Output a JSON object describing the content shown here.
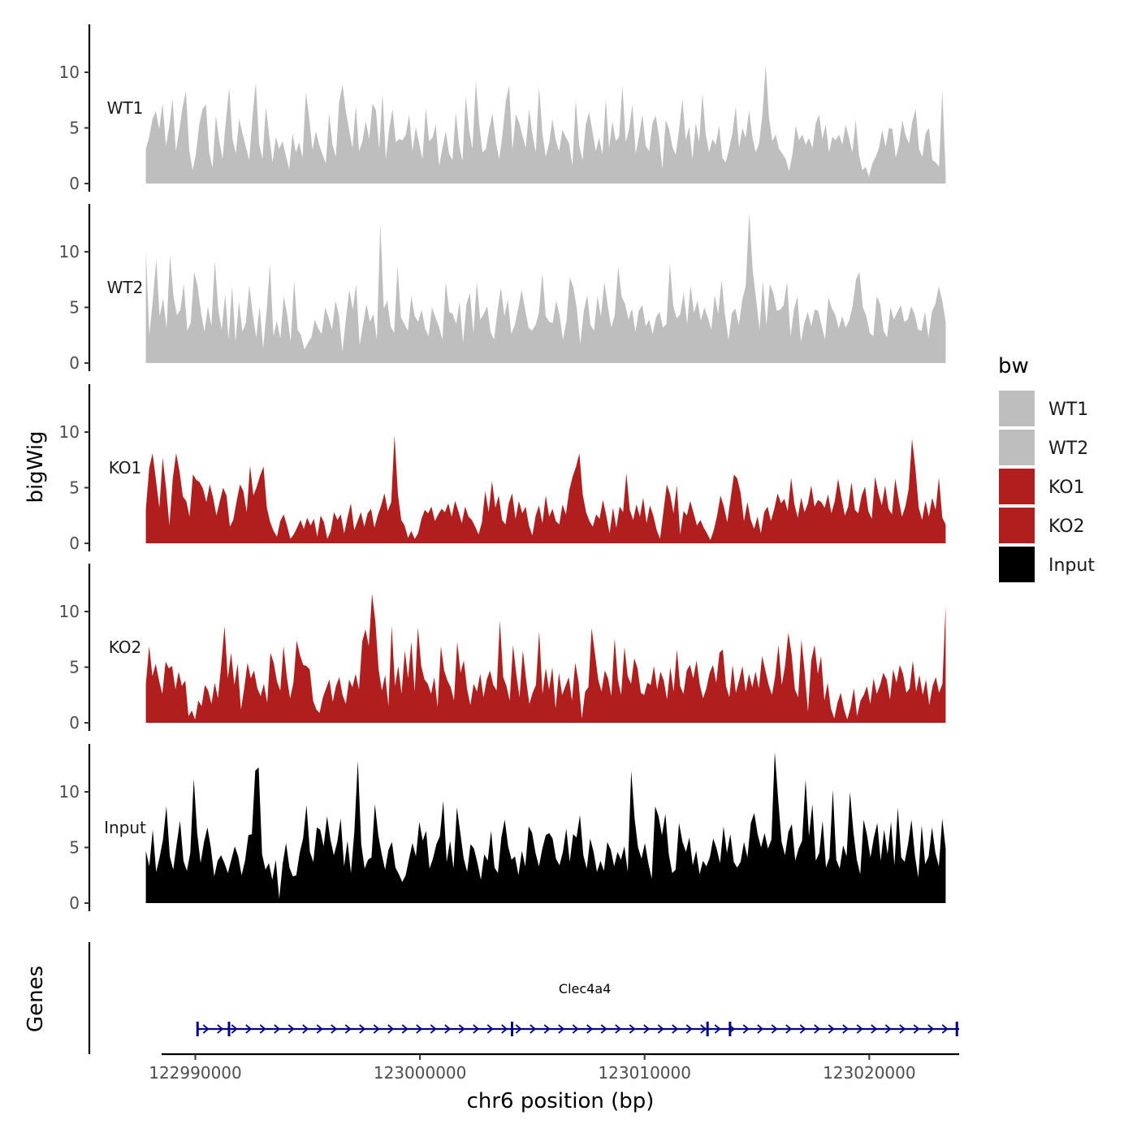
{
  "chart_data": {
    "type": "area",
    "ylabel": "bigWig",
    "xlabel": "chr6 position (bp)",
    "xlim": [
      122988500,
      123024000
    ],
    "ylim": [
      0,
      14
    ],
    "y_ticks": [
      0,
      5,
      10
    ],
    "y_tick_labels": [
      "0",
      "5",
      "10"
    ],
    "x_ticks": [
      122990000,
      123000000,
      123010000,
      123020000
    ],
    "x_tick_labels": [
      "122990000",
      "123000000",
      "123010000",
      "123020000"
    ],
    "signal_start": 122987800,
    "signal_end": 123023400,
    "series": [
      {
        "name": "WT1",
        "color": "#bebebe",
        "values": [
          3.1,
          4.2,
          5.8,
          6.5,
          4.9,
          7.2,
          3.4,
          5.1,
          7.6,
          2.9,
          4.8,
          6.9,
          8.3,
          3.0,
          1.2,
          2.6,
          5.3,
          6.7,
          7.1,
          2.8,
          1.4,
          6.1,
          3.9,
          2.2,
          5.6,
          8.6,
          4.0,
          2.7,
          5.8,
          4.5,
          3.3,
          2.1,
          6.0,
          9.1,
          3.6,
          2.2,
          6.9,
          4.3,
          1.9,
          4.2,
          3.1,
          3.8,
          2.5,
          1.3,
          4.5,
          2.8,
          3.7,
          2.3,
          8.2,
          5.9,
          3.0,
          4.7,
          3.5,
          2.6,
          1.8,
          6.3,
          3.5,
          2.4,
          7.3,
          8.9,
          6.5,
          4.8,
          3.2,
          7.0,
          2.9,
          3.8,
          5.6,
          4.0,
          7.2,
          6.6,
          3.1,
          8.1,
          2.2,
          4.9,
          6.7,
          3.7,
          4.0,
          3.9,
          4.4,
          6.2,
          2.9,
          5.1,
          3.6,
          2.2,
          6.8,
          3.8,
          4.1,
          5.3,
          1.6,
          3.2,
          4.7,
          2.7,
          2.1,
          6.4,
          3.5,
          2.0,
          7.9,
          4.8,
          3.1,
          9.2,
          5.4,
          2.8,
          3.1,
          4.9,
          6.3,
          3.8,
          2.2,
          4.4,
          7.4,
          8.8,
          3.0,
          6.2,
          5.5,
          4.3,
          3.2,
          6.7,
          4.4,
          2.8,
          8.7,
          4.5,
          2.4,
          3.6,
          5.8,
          3.9,
          2.9,
          4.8,
          4.2,
          3.6,
          1.6,
          7.5,
          3.5,
          2.1,
          5.3,
          6.4,
          4.7,
          2.9,
          4.1,
          2.6,
          7.6,
          3.2,
          5.6,
          3.8,
          4.2,
          8.8,
          3.7,
          4.9,
          7.1,
          2.7,
          4.3,
          6.2,
          3.4,
          2.9,
          5.4,
          6.1,
          4.2,
          1.3,
          5.7,
          4.9,
          3.3,
          2.6,
          4.8,
          7.6,
          3.9,
          5.1,
          2.2,
          5.5,
          3.7,
          8.1,
          4.4,
          2.8,
          4.0,
          3.5,
          5.2,
          2.3,
          1.9,
          3.1,
          4.5,
          6.9,
          3.2,
          5.0,
          4.1,
          6.6,
          4.2,
          2.8,
          3.6,
          6.1,
          10.6,
          5.9,
          3.8,
          4.4,
          3.1,
          2.7,
          2.2,
          1.1,
          2.6,
          5.2,
          3.9,
          4.4,
          3.5,
          4.1,
          3.2,
          5.4,
          6.2,
          4.0,
          5.3,
          2.8,
          4.2,
          3.9,
          4.4,
          3.5,
          5.3,
          4.1,
          2.8,
          5.7,
          2.6,
          1.2,
          1.5,
          0.6,
          1.8,
          2.4,
          3.2,
          4.8,
          3.3,
          5.0,
          4.9,
          2.3,
          3.5,
          5.7,
          4.3,
          3.6,
          5.6,
          6.7,
          3.1,
          2.4,
          4.5,
          5.0,
          2.1,
          1.9,
          1.5,
          8.4,
          0.9
        ]
      },
      {
        "name": "WT2",
        "color": "#bebebe",
        "values": [
          10.1,
          2.5,
          5.6,
          9.3,
          4.2,
          5.8,
          3.1,
          9.7,
          6.0,
          4.3,
          4.8,
          7.1,
          2.9,
          3.6,
          8.2,
          6.9,
          4.5,
          2.8,
          5.1,
          3.3,
          9.2,
          4.8,
          3.0,
          6.2,
          2.1,
          6.9,
          1.9,
          5.5,
          2.8,
          3.6,
          7.0,
          4.4,
          2.3,
          5.1,
          1.3,
          4.6,
          8.9,
          2.4,
          3.8,
          2.2,
          6.0,
          4.3,
          1.9,
          7.4,
          3.0,
          2.5,
          1.2,
          1.8,
          2.3,
          3.9,
          3.1,
          2.6,
          5.0,
          4.1,
          3.0,
          5.6,
          4.3,
          1.0,
          3.9,
          6.6,
          4.8,
          7.1,
          1.6,
          3.5,
          5.3,
          3.7,
          4.4,
          2.1,
          12.6,
          4.9,
          5.6,
          3.3,
          2.7,
          8.7,
          4.1,
          3.5,
          2.9,
          6.0,
          4.2,
          3.7,
          4.8,
          3.1,
          2.4,
          5.0,
          4.1,
          3.3,
          2.1,
          7.3,
          4.6,
          4.4,
          3.5,
          5.5,
          1.8,
          5.3,
          6.3,
          2.7,
          7.3,
          3.9,
          4.4,
          5.1,
          2.8,
          2.1,
          4.7,
          6.8,
          4.2,
          5.7,
          2.6,
          3.4,
          4.9,
          6.6,
          4.8,
          3.2,
          2.9,
          3.4,
          4.5,
          8.1,
          4.2,
          3.7,
          3.6,
          5.6,
          4.3,
          2.1,
          3.8,
          7.7,
          6.8,
          4.9,
          1.7,
          4.6,
          6.1,
          3.4,
          2.9,
          6.0,
          4.2,
          7.3,
          5.1,
          3.2,
          4.3,
          8.7,
          6.0,
          5.3,
          3.9,
          4.9,
          2.8,
          4.7,
          5.2,
          3.3,
          3.9,
          2.6,
          4.1,
          4.6,
          3.2,
          3.5,
          8.9,
          5.1,
          4.0,
          4.4,
          6.3,
          3.5,
          7.0,
          4.5,
          5.6,
          3.8,
          5.0,
          4.1,
          3.0,
          6.1,
          4.4,
          7.5,
          4.3,
          2.1,
          4.5,
          4.9,
          3.4,
          5.7,
          6.9,
          13.5,
          8.4,
          5.8,
          3.0,
          7.4,
          3.4,
          7.1,
          6.3,
          4.7,
          4.8,
          5.2,
          7.3,
          2.4,
          4.8,
          6.0,
          1.9,
          3.6,
          4.6,
          3.3,
          4.8,
          4.7,
          3.4,
          2.1,
          5.9,
          4.9,
          4.3,
          3.1,
          4.2,
          3.2,
          3.8,
          5.1,
          7.5,
          8.2,
          5.0,
          4.2,
          2.7,
          2.4,
          6.0,
          5.3,
          2.9,
          2.3,
          5.0,
          3.9,
          4.6,
          5.2,
          3.7,
          3.9,
          5.1,
          4.4,
          3.0,
          2.9,
          4.6,
          2.3,
          4.6,
          5.3,
          6.9,
          5.6,
          3.7
        ]
      },
      {
        "name": "KO1",
        "color": "#b11e1e",
        "values": [
          3.1,
          6.8,
          8.1,
          5.7,
          3.2,
          7.7,
          5.0,
          1.6,
          5.8,
          8.1,
          6.5,
          4.2,
          3.8,
          2.4,
          6.2,
          5.7,
          5.5,
          4.9,
          3.7,
          5.3,
          4.1,
          2.5,
          3.8,
          5.0,
          4.3,
          1.5,
          2.1,
          3.8,
          5.3,
          4.7,
          2.8,
          7.0,
          4.3,
          5.1,
          6.1,
          6.9,
          3.2,
          1.9,
          1.1,
          0.6,
          2.0,
          2.6,
          1.6,
          0.4,
          0.8,
          1.4,
          2.1,
          1.3,
          2.3,
          1.6,
          2.2,
          0.6,
          2.5,
          1.9,
          0.4,
          1.1,
          2.8,
          2.1,
          2.6,
          0.9,
          2.3,
          3.6,
          1.2,
          2.0,
          2.8,
          1.5,
          2.7,
          3.1,
          1.4,
          2.5,
          3.4,
          4.5,
          2.9,
          3.7,
          9.7,
          4.4,
          2.1,
          1.6,
          0.5,
          1.1,
          0.4,
          0.9,
          2.2,
          3.0,
          2.7,
          3.3,
          2.0,
          2.6,
          3.1,
          2.8,
          3.6,
          2.4,
          3.8,
          2.9,
          1.8,
          3.3,
          2.4,
          2.1,
          1.5,
          0.8,
          1.9,
          4.7,
          2.8,
          5.6,
          3.2,
          4.3,
          2.1,
          1.7,
          3.6,
          4.5,
          2.2,
          3.8,
          2.7,
          3.3,
          1.6,
          0.7,
          2.5,
          3.4,
          1.8,
          4.3,
          2.4,
          3.1,
          2.0,
          1.7,
          3.5,
          2.6,
          4.8,
          6.0,
          6.9,
          8.1,
          4.4,
          2.8,
          2.0,
          1.5,
          2.6,
          2.2,
          3.9,
          2.5,
          0.9,
          3.2,
          1.4,
          3.3,
          2.8,
          6.3,
          3.0,
          2.1,
          3.5,
          2.4,
          4.1,
          1.8,
          3.4,
          2.5,
          1.2,
          0.4,
          2.8,
          5.3,
          4.4,
          2.7,
          5.2,
          0.8,
          2.9,
          2.5,
          3.8,
          2.7,
          1.6,
          2.1,
          1.4,
          0.9,
          0.3,
          1.2,
          2.5,
          4.3,
          3.3,
          1.9,
          4.0,
          6.2,
          5.8,
          4.5,
          2.0,
          3.7,
          2.1,
          1.3,
          2.4,
          0.9,
          2.8,
          3.3,
          2.0,
          3.1,
          4.5,
          3.6,
          4.0,
          2.9,
          5.9,
          3.5,
          2.3,
          4.1,
          2.8,
          3.6,
          5.2,
          3.3,
          3.9,
          3.7,
          3.2,
          4.4,
          2.7,
          3.8,
          5.8,
          4.1,
          2.5,
          3.3,
          5.5,
          3.0,
          2.7,
          4.3,
          5.1,
          2.9,
          2.2,
          6.0,
          4.5,
          3.4,
          5.2,
          3.1,
          2.6,
          5.8,
          4.0,
          2.4,
          3.3,
          4.9,
          9.4,
          6.7,
          3.2,
          2.1,
          3.8,
          2.4,
          4.1,
          3.0,
          5.9,
          2.3,
          1.7
        ]
      },
      {
        "name": "KO2",
        "color": "#b11e1e",
        "values": [
          3.5,
          6.9,
          4.2,
          5.3,
          3.8,
          2.6,
          5.5,
          4.9,
          5.1,
          3.0,
          4.6,
          3.3,
          3.8,
          0.6,
          1.1,
          0.3,
          2.0,
          1.5,
          3.4,
          2.9,
          1.7,
          3.6,
          2.2,
          5.3,
          8.7,
          4.0,
          6.3,
          3.4,
          5.3,
          1.2,
          3.1,
          5.4,
          4.0,
          4.7,
          3.1,
          2.4,
          3.5,
          1.8,
          6.3,
          5.4,
          3.7,
          2.9,
          6.9,
          4.1,
          2.2,
          3.6,
          7.4,
          6.1,
          5.2,
          5.1,
          4.8,
          2.0,
          1.2,
          0.9,
          2.3,
          3.1,
          3.9,
          1.9,
          3.3,
          4.1,
          2.5,
          1.7,
          3.9,
          3.2,
          4.4,
          3.0,
          7.3,
          8.4,
          6.9,
          11.6,
          9.1,
          4.8,
          2.9,
          4.3,
          1.5,
          8.7,
          3.3,
          5.1,
          2.6,
          6.5,
          4.0,
          7.3,
          2.8,
          8.6,
          5.1,
          3.9,
          3.5,
          2.6,
          4.1,
          1.4,
          6.9,
          4.7,
          3.8,
          3.2,
          2.0,
          7.3,
          4.5,
          5.6,
          3.0,
          1.6,
          3.5,
          2.8,
          4.4,
          2.3,
          3.9,
          4.7,
          3.4,
          2.9,
          9.2,
          4.1,
          3.3,
          2.0,
          7.0,
          4.4,
          2.3,
          6.5,
          3.9,
          1.7,
          2.7,
          3.4,
          8.2,
          2.6,
          4.9,
          3.0,
          5.0,
          1.3,
          4.5,
          2.5,
          3.3,
          4.1,
          2.0,
          5.4,
          3.7,
          0.4,
          2.8,
          3.2,
          8.5,
          6.2,
          3.9,
          2.8,
          4.7,
          4.0,
          2.4,
          7.6,
          3.9,
          2.5,
          6.8,
          4.2,
          3.5,
          5.8,
          4.9,
          2.7,
          2.5,
          3.6,
          3.4,
          5.1,
          3.0,
          4.6,
          3.8,
          2.1,
          5.0,
          2.8,
          6.6,
          3.3,
          2.6,
          4.7,
          5.2,
          4.0,
          5.6,
          3.4,
          2.2,
          3.1,
          4.5,
          5.2,
          3.6,
          6.3,
          6.6,
          3.3,
          2.3,
          5.2,
          2.7,
          3.8,
          5.1,
          2.8,
          4.4,
          3.2,
          4.6,
          3.1,
          6.0,
          4.7,
          3.4,
          2.5,
          4.2,
          7.0,
          3.4,
          5.1,
          8.1,
          6.2,
          3.0,
          2.3,
          7.5,
          4.5,
          1.0,
          5.6,
          7.0,
          4.4,
          6.0,
          2.0,
          3.6,
          1.3,
          0.4,
          1.8,
          2.7,
          1.2,
          0.3,
          1.4,
          3.1,
          0.6,
          2.0,
          2.5,
          3.3,
          1.7,
          4.0,
          2.6,
          3.4,
          4.5,
          3.9,
          2.1,
          4.8,
          3.6,
          5.2,
          4.4,
          2.7,
          3.1,
          5.6,
          2.8,
          4.3,
          2.5,
          3.9,
          1.6,
          3.3,
          4.1,
          2.7,
          3.5,
          10.5
        ]
      },
      {
        "name": "Input",
        "color": "#000000",
        "values": [
          4.7,
          3.3,
          6.6,
          2.8,
          4.1,
          5.7,
          8.7,
          4.2,
          3.0,
          5.3,
          7.4,
          3.8,
          2.9,
          4.5,
          11.2,
          6.3,
          3.6,
          5.5,
          6.8,
          5.0,
          2.4,
          3.8,
          4.3,
          3.6,
          2.7,
          3.9,
          5.1,
          4.2,
          2.5,
          3.8,
          6.1,
          6.2,
          11.9,
          12.2,
          4.4,
          3.0,
          3.6,
          2.1,
          3.9,
          0.4,
          3.5,
          5.4,
          3.2,
          2.4,
          2.5,
          4.5,
          5.8,
          8.8,
          4.6,
          3.7,
          6.8,
          6.6,
          5.1,
          7.8,
          5.7,
          4.3,
          5.5,
          7.6,
          3.3,
          5.6,
          2.7,
          6.4,
          12.8,
          5.3,
          3.1,
          3.9,
          4.1,
          8.9,
          6.1,
          4.4,
          3.0,
          4.8,
          5.5,
          3.2,
          2.6,
          1.9,
          2.5,
          4.0,
          5.4,
          4.2,
          7.3,
          5.6,
          6.5,
          3.1,
          4.0,
          5.3,
          6.0,
          9.2,
          3.7,
          5.6,
          3.1,
          8.6,
          6.3,
          4.0,
          2.8,
          5.3,
          4.9,
          3.6,
          2.1,
          4.4,
          3.8,
          6.5,
          3.2,
          2.7,
          5.9,
          7.5,
          5.1,
          3.9,
          4.2,
          2.5,
          4.7,
          3.3,
          6.9,
          6.3,
          4.5,
          3.3,
          4.9,
          6.1,
          6.3,
          5.8,
          4.0,
          3.4,
          4.6,
          6.7,
          3.7,
          6.2,
          5.9,
          7.9,
          4.3,
          3.1,
          5.8,
          4.6,
          2.8,
          3.8,
          2.9,
          5.5,
          4.8,
          3.3,
          4.6,
          3.9,
          5.1,
          2.8,
          11.9,
          7.6,
          5.0,
          4.0,
          5.4,
          3.6,
          2.2,
          8.7,
          7.8,
          6.1,
          8.0,
          4.4,
          2.7,
          3.0,
          7.2,
          5.5,
          4.6,
          5.9,
          3.4,
          4.7,
          2.6,
          3.8,
          3.3,
          4.1,
          5.8,
          4.9,
          3.6,
          6.9,
          4.5,
          6.2,
          3.7,
          3.2,
          3.7,
          5.5,
          4.1,
          7.2,
          8.1,
          6.2,
          5.0,
          6.3,
          4.9,
          5.7,
          13.6,
          9.3,
          5.5,
          4.3,
          6.4,
          7.1,
          3.8,
          4.9,
          5.6,
          11.1,
          6.0,
          8.9,
          3.8,
          4.5,
          7.4,
          3.2,
          4.1,
          10.2,
          3.9,
          3.1,
          5.2,
          4.2,
          10.0,
          6.4,
          3.9,
          2.6,
          7.5,
          6.1,
          4.1,
          5.9,
          7.2,
          3.8,
          6.6,
          4.4,
          7.3,
          3.4,
          8.6,
          4.1,
          3.7,
          5.3,
          7.5,
          4.3,
          2.3,
          7.0,
          3.5,
          4.2,
          6.8,
          4.5,
          3.3,
          7.6,
          4.9
        ]
      }
    ],
    "track_labels": [
      "WT1",
      "WT2",
      "KO1",
      "KO2",
      "Input"
    ],
    "legend": {
      "title": "bw",
      "position": "right",
      "items": [
        {
          "label": "WT1",
          "color": "#bebebe"
        },
        {
          "label": "WT2",
          "color": "#bebebe"
        },
        {
          "label": "KO1",
          "color": "#b11e1e"
        },
        {
          "label": "KO2",
          "color": "#b11e1e"
        },
        {
          "label": "Input",
          "color": "#000000"
        }
      ]
    },
    "genes_track": {
      "ylabel": "Genes",
      "genes": [
        {
          "name": "Clec4a4",
          "strand": "+",
          "start": 122990100,
          "end": 123024000,
          "exons": [
            122990100,
            122991500,
            123004100,
            123012800,
            123013800,
            123023900
          ]
        }
      ],
      "color": "#00008b"
    }
  }
}
